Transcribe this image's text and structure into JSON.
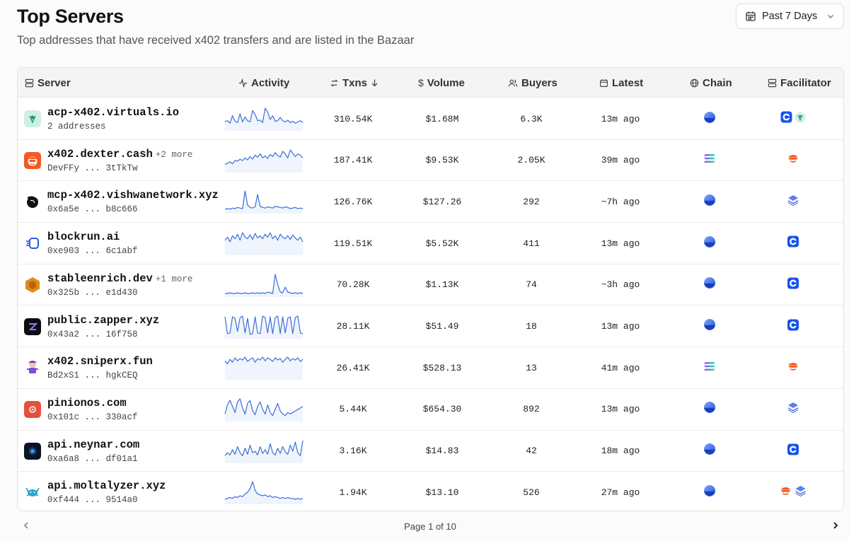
{
  "header": {
    "title": "Top Servers",
    "subtitle": "Top addresses that have received x402 transfers and are listed in the Bazaar",
    "range_label": "Past 7 Days"
  },
  "columns": {
    "server": "Server",
    "activity": "Activity",
    "txns": "Txns",
    "volume": "Volume",
    "buyers": "Buyers",
    "latest": "Latest",
    "chain": "Chain",
    "facilitator": "Facilitator"
  },
  "colors": {
    "sparkline": "#3b6fd8",
    "base_chain": "#2b5bd8",
    "coinbase": "#1652f0"
  },
  "rows": [
    {
      "name": "acp-x402.virtuals.io",
      "more": "",
      "address": "2 addresses",
      "txns": "310.54K",
      "volume": "$1.68M",
      "buyers": "6.3K",
      "latest": "13m ago",
      "chain": "base",
      "facilitators": [
        "coinbase",
        "virtuals"
      ],
      "logo": "virtuals",
      "activity": [
        12,
        14,
        10,
        22,
        13,
        11,
        25,
        12,
        20,
        14,
        12,
        30,
        24,
        14,
        15,
        11,
        34,
        28,
        16,
        22,
        13,
        14,
        19,
        14,
        12,
        15,
        11,
        13,
        10,
        12,
        14,
        11
      ]
    },
    {
      "name": "x402.dexter.cash",
      "more": "+2 more",
      "address": "DevFFy ... 3tTkTw",
      "txns": "187.41K",
      "volume": "$9.53K",
      "buyers": "2.05K",
      "latest": "39m ago",
      "chain": "solana",
      "facilitators": [
        "dexter"
      ],
      "logo": "dexter",
      "activity": [
        10,
        12,
        14,
        11,
        16,
        15,
        18,
        16,
        20,
        17,
        22,
        18,
        24,
        21,
        26,
        20,
        23,
        19,
        25,
        22,
        28,
        24,
        21,
        30,
        26,
        20,
        32,
        27,
        22,
        26,
        24,
        20
      ]
    },
    {
      "name": "mcp-x402.vishwanetwork.xyz",
      "more": "",
      "address": "0x6a5e ... b8c666",
      "txns": "126.76K",
      "volume": "$127.26",
      "buyers": "292",
      "latest": "~7h ago",
      "chain": "base",
      "facilitators": [
        "stack"
      ],
      "logo": "vishwa",
      "activity": [
        5,
        6,
        5,
        7,
        6,
        8,
        7,
        6,
        36,
        12,
        8,
        7,
        9,
        30,
        10,
        8,
        7,
        9,
        8,
        7,
        10,
        9,
        8,
        7,
        9,
        8,
        6,
        7,
        8,
        6,
        7,
        6
      ]
    },
    {
      "name": "blockrun.ai",
      "more": "",
      "address": "0xe903 ... 6c1abf",
      "txns": "119.51K",
      "volume": "$5.52K",
      "buyers": "411",
      "latest": "13m ago",
      "chain": "base",
      "facilitators": [
        "coinbase"
      ],
      "logo": "blockrun",
      "activity": [
        18,
        22,
        16,
        24,
        20,
        26,
        18,
        28,
        22,
        20,
        25,
        19,
        27,
        21,
        24,
        20,
        26,
        22,
        28,
        20,
        24,
        18,
        26,
        22,
        20,
        24,
        19,
        25,
        21,
        18,
        22,
        16
      ]
    },
    {
      "name": "stableenrich.dev",
      "more": "+1 more",
      "address": "0x325b ... e1d430",
      "txns": "70.28K",
      "volume": "$1.13K",
      "buyers": "74",
      "latest": "~3h ago",
      "chain": "base",
      "facilitators": [
        "coinbase"
      ],
      "logo": "stable",
      "activity": [
        3,
        3,
        4,
        3,
        3,
        4,
        3,
        3,
        4,
        3,
        3,
        4,
        3,
        4,
        3,
        4,
        3,
        5,
        4,
        3,
        30,
        16,
        5,
        4,
        12,
        5,
        4,
        3,
        4,
        3,
        4,
        3
      ]
    },
    {
      "name": "public.zapper.xyz",
      "more": "",
      "address": "0x43a2 ... 16f758",
      "txns": "28.11K",
      "volume": "$51.49",
      "buyers": "18",
      "latest": "13m ago",
      "chain": "base",
      "facilitators": [
        "coinbase"
      ],
      "logo": "zapper",
      "activity": [
        28,
        5,
        6,
        28,
        26,
        8,
        27,
        29,
        6,
        26,
        4,
        5,
        28,
        6,
        5,
        29,
        27,
        6,
        28,
        5,
        27,
        29,
        5,
        28,
        6,
        26,
        28,
        5,
        27,
        29,
        6,
        5
      ]
    },
    {
      "name": "x402.sniperx.fun",
      "more": "",
      "address": "Bd2xS1 ... hgkCEQ",
      "txns": "26.41K",
      "volume": "$528.13",
      "buyers": "13",
      "latest": "41m ago",
      "chain": "solana",
      "facilitators": [
        "dexter"
      ],
      "logo": "sniperx",
      "activity": [
        24,
        20,
        26,
        22,
        28,
        24,
        27,
        25,
        29,
        23,
        26,
        28,
        22,
        27,
        25,
        29,
        24,
        28,
        26,
        23,
        28,
        25,
        27,
        22,
        26,
        29,
        24,
        27,
        25,
        28,
        23,
        26
      ]
    },
    {
      "name": "pinionos.com",
      "more": "",
      "address": "0x101c ... 330acf",
      "txns": "5.44K",
      "volume": "$654.30",
      "buyers": "892",
      "latest": "13m ago",
      "chain": "base",
      "facilitators": [
        "stack"
      ],
      "logo": "pinion",
      "activity": [
        8,
        20,
        26,
        18,
        10,
        24,
        28,
        16,
        8,
        22,
        26,
        12,
        7,
        18,
        24,
        14,
        8,
        20,
        10,
        6,
        14,
        22,
        12,
        8,
        6,
        10,
        8,
        10,
        12,
        14,
        16,
        18
      ]
    },
    {
      "name": "api.neynar.com",
      "more": "",
      "address": "0xa6a8 ... df01a1",
      "txns": "3.16K",
      "volume": "$14.83",
      "buyers": "42",
      "latest": "18m ago",
      "chain": "base",
      "facilitators": [
        "coinbase"
      ],
      "logo": "neynar",
      "activity": [
        8,
        12,
        9,
        16,
        10,
        20,
        12,
        8,
        18,
        10,
        22,
        12,
        14,
        9,
        20,
        11,
        16,
        10,
        24,
        12,
        9,
        18,
        11,
        20,
        13,
        10,
        22,
        14,
        26,
        12,
        8,
        28
      ]
    },
    {
      "name": "api.moltalyzer.xyz",
      "more": "",
      "address": "0xf444 ... 9514a0",
      "txns": "1.94K",
      "volume": "$13.10",
      "buyers": "526",
      "latest": "27m ago",
      "chain": "base",
      "facilitators": [
        "dexter",
        "stack"
      ],
      "logo": "moltalyzer",
      "activity": [
        4,
        5,
        6,
        5,
        7,
        6,
        8,
        7,
        10,
        12,
        16,
        24,
        14,
        10,
        9,
        8,
        9,
        7,
        8,
        6,
        7,
        6,
        5,
        6,
        5,
        6,
        5,
        5,
        4,
        5,
        4,
        5
      ]
    }
  ],
  "pagination": {
    "label": "Page 1 of 10"
  }
}
